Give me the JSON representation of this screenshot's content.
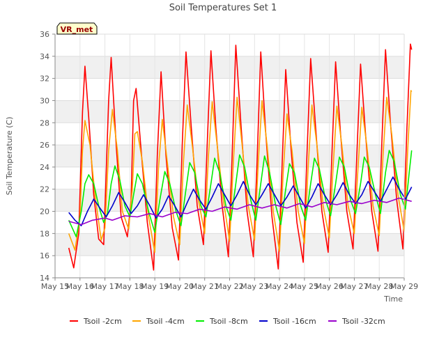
{
  "chart_data": {
    "type": "line",
    "title": "Soil Temperatures Set 1",
    "xlabel": "Time",
    "ylabel": "Soil Temperature (C)",
    "ylim": [
      14,
      36
    ],
    "y_ticks": [
      14,
      16,
      18,
      20,
      22,
      24,
      26,
      28,
      30,
      32,
      34,
      36
    ],
    "x_ticks": [
      "May 15",
      "May 16",
      "May 17",
      "May 18",
      "May 19",
      "May 20",
      "May 21",
      "May 22",
      "May 23",
      "May 24",
      "May 25",
      "May 26",
      "May 27",
      "May 28",
      "May 29"
    ],
    "x_range_days": [
      15,
      29
    ],
    "grid": true,
    "grid_style": "alternating horizontal bands",
    "legend_position": "bottom",
    "site_label": "VR_met",
    "series": [
      {
        "name": "Tsoil -2cm",
        "color": "#ff0000",
        "points": [
          [
            15.55,
            16.7
          ],
          [
            15.75,
            14.9
          ],
          [
            15.95,
            18.0
          ],
          [
            16.1,
            29.0
          ],
          [
            16.2,
            33.1
          ],
          [
            16.35,
            28.5
          ],
          [
            16.55,
            21.5
          ],
          [
            16.75,
            17.5
          ],
          [
            16.95,
            17.0
          ],
          [
            17.15,
            30.0
          ],
          [
            17.25,
            33.9
          ],
          [
            17.45,
            26.0
          ],
          [
            17.65,
            19.5
          ],
          [
            17.9,
            17.7
          ],
          [
            18.05,
            21.0
          ],
          [
            18.15,
            30.0
          ],
          [
            18.25,
            31.1
          ],
          [
            18.45,
            25.5
          ],
          [
            18.7,
            19.0
          ],
          [
            18.95,
            14.7
          ],
          [
            19.1,
            25.0
          ],
          [
            19.25,
            32.6
          ],
          [
            19.45,
            25.0
          ],
          [
            19.7,
            18.5
          ],
          [
            19.95,
            15.6
          ],
          [
            20.1,
            26.0
          ],
          [
            20.25,
            34.4
          ],
          [
            20.45,
            28.0
          ],
          [
            20.7,
            20.5
          ],
          [
            20.95,
            17.0
          ],
          [
            21.1,
            26.0
          ],
          [
            21.25,
            34.5
          ],
          [
            21.45,
            27.5
          ],
          [
            21.7,
            20.5
          ],
          [
            21.95,
            15.9
          ],
          [
            22.1,
            25.0
          ],
          [
            22.25,
            35.0
          ],
          [
            22.45,
            28.0
          ],
          [
            22.7,
            20.0
          ],
          [
            22.95,
            15.9
          ],
          [
            23.1,
            24.5
          ],
          [
            23.25,
            34.4
          ],
          [
            23.45,
            27.0
          ],
          [
            23.7,
            19.5
          ],
          [
            23.95,
            14.8
          ],
          [
            24.1,
            24.0
          ],
          [
            24.25,
            32.8
          ],
          [
            24.45,
            26.0
          ],
          [
            24.7,
            19.0
          ],
          [
            24.95,
            15.4
          ],
          [
            25.1,
            25.0
          ],
          [
            25.25,
            33.8
          ],
          [
            25.45,
            27.5
          ],
          [
            25.7,
            20.0
          ],
          [
            25.95,
            16.3
          ],
          [
            26.1,
            25.0
          ],
          [
            26.25,
            33.5
          ],
          [
            26.45,
            27.0
          ],
          [
            26.7,
            20.0
          ],
          [
            26.95,
            16.6
          ],
          [
            27.1,
            25.0
          ],
          [
            27.25,
            33.3
          ],
          [
            27.45,
            27.0
          ],
          [
            27.7,
            20.0
          ],
          [
            27.95,
            16.4
          ],
          [
            28.1,
            26.0
          ],
          [
            28.25,
            34.6
          ],
          [
            28.45,
            28.0
          ],
          [
            28.7,
            21.0
          ],
          [
            28.95,
            16.6
          ],
          [
            29.1,
            27.0
          ],
          [
            29.25,
            35.1
          ],
          [
            29.3,
            34.6
          ]
        ]
      },
      {
        "name": "Tsoil -4cm",
        "color": "#ffa500",
        "points": [
          [
            15.55,
            18.0
          ],
          [
            15.8,
            16.5
          ],
          [
            16.0,
            19.5
          ],
          [
            16.1,
            25.5
          ],
          [
            16.2,
            28.2
          ],
          [
            16.4,
            26.0
          ],
          [
            16.6,
            21.5
          ],
          [
            16.85,
            17.4
          ],
          [
            17.0,
            18.5
          ],
          [
            17.15,
            25.5
          ],
          [
            17.3,
            29.2
          ],
          [
            17.5,
            25.5
          ],
          [
            17.7,
            20.0
          ],
          [
            17.95,
            18.4
          ],
          [
            18.1,
            22.0
          ],
          [
            18.2,
            27.0
          ],
          [
            18.3,
            27.2
          ],
          [
            18.5,
            24.5
          ],
          [
            18.75,
            19.5
          ],
          [
            19.0,
            16.3
          ],
          [
            19.15,
            24.0
          ],
          [
            19.3,
            28.3
          ],
          [
            19.5,
            24.5
          ],
          [
            19.75,
            19.5
          ],
          [
            20.0,
            17.0
          ],
          [
            20.15,
            24.5
          ],
          [
            20.3,
            29.6
          ],
          [
            20.5,
            26.0
          ],
          [
            20.75,
            21.0
          ],
          [
            21.0,
            18.0
          ],
          [
            21.15,
            25.0
          ],
          [
            21.3,
            29.9
          ],
          [
            21.5,
            26.0
          ],
          [
            21.75,
            21.0
          ],
          [
            22.0,
            17.3
          ],
          [
            22.15,
            24.5
          ],
          [
            22.3,
            30.3
          ],
          [
            22.5,
            26.0
          ],
          [
            22.75,
            20.5
          ],
          [
            23.0,
            17.4
          ],
          [
            23.15,
            24.5
          ],
          [
            23.3,
            30.0
          ],
          [
            23.5,
            26.0
          ],
          [
            23.75,
            20.0
          ],
          [
            24.0,
            16.4
          ],
          [
            24.15,
            23.5
          ],
          [
            24.3,
            28.8
          ],
          [
            24.5,
            25.5
          ],
          [
            24.75,
            20.0
          ],
          [
            25.0,
            17.1
          ],
          [
            25.15,
            24.0
          ],
          [
            25.3,
            29.6
          ],
          [
            25.5,
            26.0
          ],
          [
            25.75,
            20.5
          ],
          [
            26.0,
            17.6
          ],
          [
            26.15,
            24.0
          ],
          [
            26.3,
            29.5
          ],
          [
            26.5,
            26.0
          ],
          [
            26.75,
            20.5
          ],
          [
            27.0,
            18.0
          ],
          [
            27.15,
            24.0
          ],
          [
            27.3,
            29.4
          ],
          [
            27.5,
            26.0
          ],
          [
            27.75,
            20.5
          ],
          [
            28.0,
            17.8
          ],
          [
            28.15,
            25.0
          ],
          [
            28.3,
            30.3
          ],
          [
            28.5,
            27.0
          ],
          [
            28.75,
            21.5
          ],
          [
            29.0,
            18.2
          ],
          [
            29.15,
            26.0
          ],
          [
            29.27,
            30.9
          ],
          [
            29.3,
            30.8
          ]
        ]
      },
      {
        "name": "Tsoil -8cm",
        "color": "#00ee00",
        "points": [
          [
            15.55,
            19.2
          ],
          [
            15.85,
            17.7
          ],
          [
            16.05,
            20.0
          ],
          [
            16.2,
            22.5
          ],
          [
            16.35,
            23.3
          ],
          [
            16.55,
            22.5
          ],
          [
            16.75,
            20.5
          ],
          [
            16.95,
            19.0
          ],
          [
            17.1,
            19.8
          ],
          [
            17.25,
            22.5
          ],
          [
            17.4,
            24.1
          ],
          [
            17.6,
            22.8
          ],
          [
            17.8,
            20.5
          ],
          [
            18.0,
            19.5
          ],
          [
            18.15,
            21.5
          ],
          [
            18.3,
            23.4
          ],
          [
            18.5,
            22.5
          ],
          [
            18.75,
            20.0
          ],
          [
            19.0,
            18.1
          ],
          [
            19.2,
            21.0
          ],
          [
            19.4,
            23.6
          ],
          [
            19.6,
            22.5
          ],
          [
            19.85,
            20.0
          ],
          [
            20.05,
            18.7
          ],
          [
            20.25,
            22.0
          ],
          [
            20.4,
            24.4
          ],
          [
            20.6,
            23.5
          ],
          [
            20.85,
            20.5
          ],
          [
            21.05,
            19.5
          ],
          [
            21.25,
            22.5
          ],
          [
            21.4,
            24.8
          ],
          [
            21.6,
            23.5
          ],
          [
            21.85,
            20.5
          ],
          [
            22.05,
            19.2
          ],
          [
            22.25,
            22.5
          ],
          [
            22.4,
            25.1
          ],
          [
            22.6,
            24.0
          ],
          [
            22.85,
            21.0
          ],
          [
            23.05,
            19.2
          ],
          [
            23.25,
            22.5
          ],
          [
            23.4,
            25.0
          ],
          [
            23.6,
            23.5
          ],
          [
            23.85,
            20.5
          ],
          [
            24.05,
            18.8
          ],
          [
            24.25,
            22.0
          ],
          [
            24.4,
            24.3
          ],
          [
            24.6,
            23.5
          ],
          [
            24.85,
            20.5
          ],
          [
            25.05,
            19.2
          ],
          [
            25.25,
            22.5
          ],
          [
            25.4,
            24.8
          ],
          [
            25.6,
            23.8
          ],
          [
            25.85,
            21.0
          ],
          [
            26.05,
            19.6
          ],
          [
            26.25,
            22.5
          ],
          [
            26.4,
            24.9
          ],
          [
            26.6,
            24.0
          ],
          [
            26.85,
            21.0
          ],
          [
            27.05,
            19.8
          ],
          [
            27.25,
            22.5
          ],
          [
            27.4,
            24.9
          ],
          [
            27.6,
            24.0
          ],
          [
            27.85,
            21.5
          ],
          [
            28.05,
            19.8
          ],
          [
            28.25,
            23.5
          ],
          [
            28.4,
            25.5
          ],
          [
            28.6,
            24.5
          ],
          [
            28.85,
            21.5
          ],
          [
            29.05,
            20.2
          ],
          [
            29.2,
            23.5
          ],
          [
            29.3,
            25.5
          ]
        ]
      },
      {
        "name": "Tsoil -16cm",
        "color": "#0000cc",
        "points": [
          [
            15.55,
            19.9
          ],
          [
            15.8,
            19.2
          ],
          [
            16.05,
            18.7
          ],
          [
            16.3,
            20.0
          ],
          [
            16.55,
            21.1
          ],
          [
            16.8,
            20.3
          ],
          [
            17.05,
            19.5
          ],
          [
            17.3,
            20.5
          ],
          [
            17.55,
            21.7
          ],
          [
            17.8,
            20.8
          ],
          [
            18.05,
            19.8
          ],
          [
            18.3,
            20.5
          ],
          [
            18.55,
            21.5
          ],
          [
            18.8,
            20.5
          ],
          [
            19.05,
            19.4
          ],
          [
            19.3,
            20.2
          ],
          [
            19.55,
            21.4
          ],
          [
            19.8,
            20.5
          ],
          [
            20.05,
            19.5
          ],
          [
            20.3,
            20.8
          ],
          [
            20.55,
            22.0
          ],
          [
            20.8,
            21.0
          ],
          [
            21.05,
            20.2
          ],
          [
            21.3,
            21.3
          ],
          [
            21.55,
            22.5
          ],
          [
            21.8,
            21.5
          ],
          [
            22.05,
            20.5
          ],
          [
            22.3,
            21.5
          ],
          [
            22.55,
            22.7
          ],
          [
            22.8,
            21.5
          ],
          [
            23.05,
            20.6
          ],
          [
            23.3,
            21.5
          ],
          [
            23.55,
            22.5
          ],
          [
            23.8,
            21.5
          ],
          [
            24.05,
            20.5
          ],
          [
            24.3,
            21.3
          ],
          [
            24.55,
            22.3
          ],
          [
            24.8,
            21.3
          ],
          [
            25.05,
            20.3
          ],
          [
            25.3,
            21.3
          ],
          [
            25.55,
            22.5
          ],
          [
            25.8,
            21.5
          ],
          [
            26.05,
            20.6
          ],
          [
            26.3,
            21.5
          ],
          [
            26.55,
            22.6
          ],
          [
            26.8,
            21.5
          ],
          [
            27.05,
            20.7
          ],
          [
            27.3,
            21.5
          ],
          [
            27.55,
            22.7
          ],
          [
            27.8,
            21.8
          ],
          [
            28.05,
            20.9
          ],
          [
            28.3,
            22.0
          ],
          [
            28.55,
            23.1
          ],
          [
            28.8,
            22.0
          ],
          [
            29.05,
            21.1
          ],
          [
            29.3,
            22.2
          ]
        ]
      },
      {
        "name": "Tsoil -32cm",
        "color": "#9900cc",
        "points": [
          [
            15.55,
            19.1
          ],
          [
            16.05,
            18.8
          ],
          [
            16.5,
            19.2
          ],
          [
            17.0,
            19.4
          ],
          [
            17.3,
            19.2
          ],
          [
            17.8,
            19.6
          ],
          [
            18.3,
            19.5
          ],
          [
            18.8,
            19.8
          ],
          [
            19.3,
            19.5
          ],
          [
            19.8,
            19.9
          ],
          [
            20.3,
            19.8
          ],
          [
            20.8,
            20.2
          ],
          [
            21.3,
            20.0
          ],
          [
            21.8,
            20.4
          ],
          [
            22.3,
            20.2
          ],
          [
            22.8,
            20.6
          ],
          [
            23.3,
            20.3
          ],
          [
            23.8,
            20.6
          ],
          [
            24.3,
            20.3
          ],
          [
            24.8,
            20.7
          ],
          [
            25.3,
            20.4
          ],
          [
            25.8,
            20.8
          ],
          [
            26.3,
            20.6
          ],
          [
            26.8,
            20.9
          ],
          [
            27.3,
            20.7
          ],
          [
            27.8,
            21.0
          ],
          [
            28.3,
            20.8
          ],
          [
            28.8,
            21.2
          ],
          [
            29.3,
            20.9
          ]
        ]
      }
    ]
  }
}
